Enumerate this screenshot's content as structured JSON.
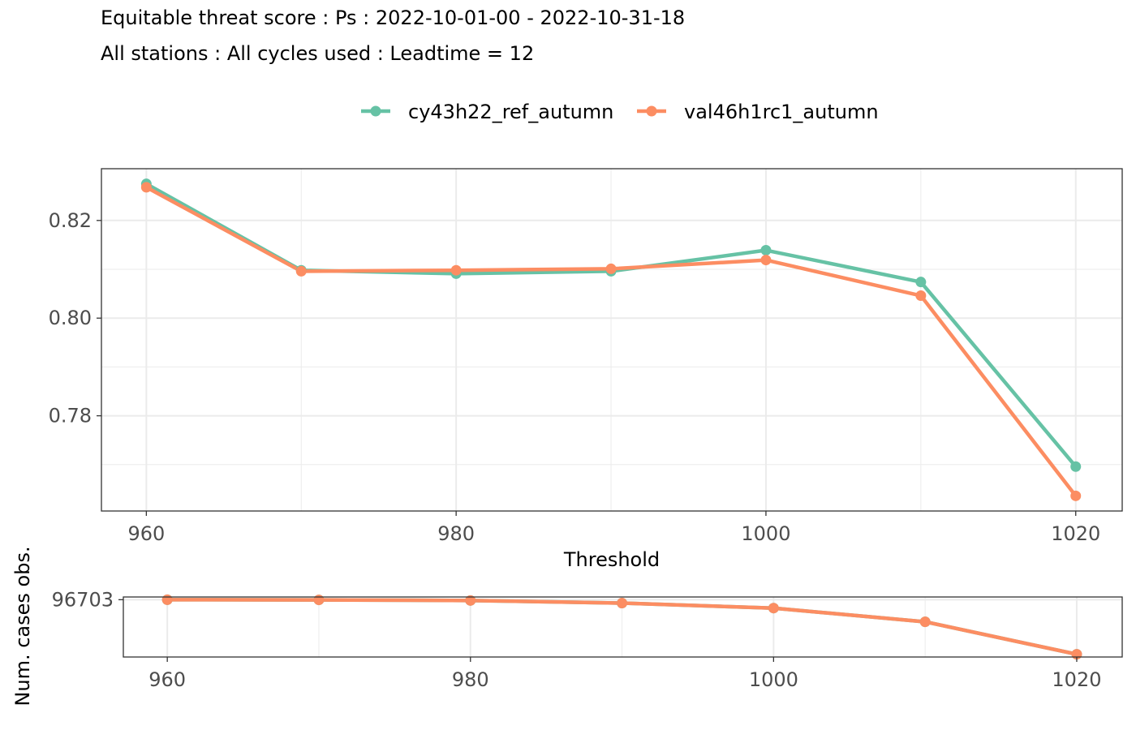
{
  "title": "Equitable threat score : Ps : 2022-10-01-00 - 2022-10-31-18",
  "subtitle": "All stations : All cycles used : Leadtime = 12",
  "colors": {
    "cy43h22_ref_autumn": "#66c2a5",
    "val46h1rc1_autumn": "#fc8d62",
    "panel_border": "#333333",
    "grid": "#ebebeb",
    "tick_text": "#4d4d4d"
  },
  "legend": {
    "placement": "top",
    "items": [
      {
        "label": "cy43h22_ref_autumn",
        "color": "#66c2a5"
      },
      {
        "label": "val46h1rc1_autumn",
        "color": "#fc8d62"
      }
    ]
  },
  "chart_data": [
    {
      "type": "line",
      "xlabel": "Threshold",
      "ylabel": "",
      "x": [
        960,
        970,
        980,
        990,
        1000,
        1010,
        1020
      ],
      "xticks": [
        960,
        980,
        1000,
        1020
      ],
      "xlim": [
        957.1,
        1023.0
      ],
      "yticks": [
        0.78,
        0.8,
        0.82
      ],
      "ytick_labels": [
        "0.78",
        "0.80",
        "0.82"
      ],
      "ylim": [
        0.7605,
        0.8306
      ],
      "grid": true,
      "series": [
        {
          "name": "cy43h22_ref_autumn",
          "color": "#66c2a5",
          "values": [
            0.8275,
            0.8098,
            0.8091,
            0.8096,
            0.8139,
            0.8074,
            0.7696
          ]
        },
        {
          "name": "val46h1rc1_autumn",
          "color": "#fc8d62",
          "values": [
            0.8268,
            0.8096,
            0.8098,
            0.8101,
            0.8119,
            0.8046,
            0.7636
          ]
        }
      ]
    },
    {
      "type": "line",
      "xlabel": "",
      "ylabel": "Num. cases obs.",
      "x": [
        960,
        970,
        980,
        990,
        1000,
        1010,
        1020
      ],
      "xticks": [
        960,
        980,
        1000,
        1020
      ],
      "xlim": [
        957.1,
        1023.0
      ],
      "yticks": [
        96703
      ],
      "ytick_labels": [
        "96703"
      ],
      "grid": true,
      "series": [
        {
          "name": "cy43h22_ref_autumn",
          "color": "#66c2a5",
          "values": [
            96703,
            96701,
            96694,
            96664,
            96607,
            96450,
            96078
          ]
        },
        {
          "name": "val46h1rc1_autumn",
          "color": "#fc8d62",
          "values": [
            96703,
            96701,
            96694,
            96664,
            96607,
            96450,
            96078
          ]
        }
      ]
    }
  ]
}
